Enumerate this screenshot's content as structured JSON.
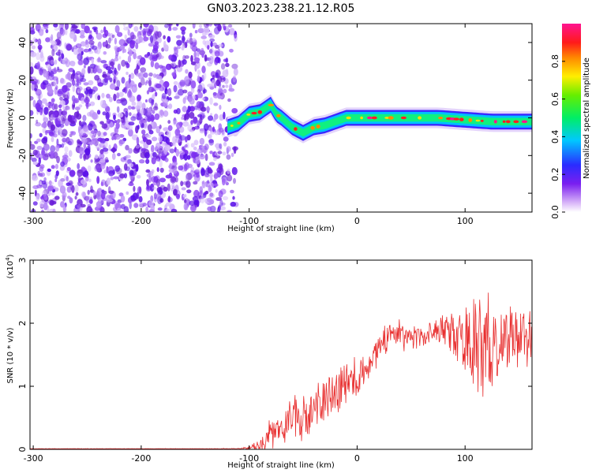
{
  "title": "GN03.2023.238.21.12.R05",
  "chart_data": [
    {
      "type": "heatmap",
      "xlabel": "Height of straight line (km)",
      "ylabel": "Frequency (Hz)",
      "xlim": [
        -303,
        162
      ],
      "ylim": [
        -50,
        50
      ],
      "xticks": [
        -300,
        -200,
        -100,
        0,
        100
      ],
      "yticks": [
        -40,
        -20,
        0,
        20,
        40
      ],
      "colorbar": {
        "label": "Normalized spectral amplitude",
        "range": [
          0,
          1
        ],
        "ticks": [
          "0.0",
          "0.2",
          "0.4",
          "0.6",
          "0.8"
        ],
        "colormap": "white-purple-blue-cyan-green-yellow-red-magenta"
      },
      "features": {
        "noise_region_x": [
          -303,
          -112
        ],
        "signal_ridge": {
          "x": [
            -120,
            -110,
            -100,
            -90,
            -80,
            -75,
            -70,
            -60,
            -50,
            -40,
            -30,
            -20,
            -10,
            0,
            25,
            50,
            75,
            100,
            125,
            162
          ],
          "frequency_hz": [
            -5,
            -3,
            2,
            3,
            7,
            2,
            0,
            -5,
            -8,
            -5,
            -4,
            -2,
            0,
            0,
            0,
            0,
            0,
            -1,
            -2,
            -2
          ]
        }
      }
    },
    {
      "type": "line",
      "xlabel": "Height of straight line (km)",
      "ylabel": "SNR (10 * v/v)",
      "y_multiplier": "(x10^4)",
      "xlim": [
        -303,
        162
      ],
      "ylim": [
        0,
        3
      ],
      "xticks": [
        -300,
        -200,
        -100,
        0,
        100
      ],
      "yticks": [
        0,
        1,
        2,
        3
      ],
      "series": [
        {
          "color": "#e83030",
          "x": [
            -303,
            -250,
            -200,
            -150,
            -110,
            -100,
            -90,
            -80,
            -70,
            -60,
            -50,
            -40,
            -30,
            -20,
            -10,
            0,
            10,
            20,
            30,
            40,
            50,
            60,
            70,
            80,
            90,
            100,
            110,
            120,
            130,
            140,
            150,
            162
          ],
          "mean": [
            0.01,
            0.01,
            0.01,
            0.01,
            0.01,
            0.02,
            0.08,
            0.2,
            0.35,
            0.45,
            0.5,
            0.6,
            0.75,
            0.95,
            1.05,
            1.1,
            1.35,
            1.55,
            1.85,
            1.8,
            1.75,
            1.8,
            1.85,
            1.9,
            1.8,
            1.75,
            1.7,
            1.65,
            1.7,
            1.8,
            1.75,
            1.75
          ],
          "noise_amplitude": [
            0.003,
            0.003,
            0.003,
            0.003,
            0.005,
            0.03,
            0.1,
            0.25,
            0.25,
            0.3,
            0.3,
            0.35,
            0.35,
            0.35,
            0.3,
            0.3,
            0.2,
            0.2,
            0.25,
            0.2,
            0.2,
            0.15,
            0.15,
            0.2,
            0.3,
            0.5,
            0.7,
            0.75,
            0.6,
            0.4,
            0.4,
            0.4
          ]
        }
      ]
    }
  ]
}
